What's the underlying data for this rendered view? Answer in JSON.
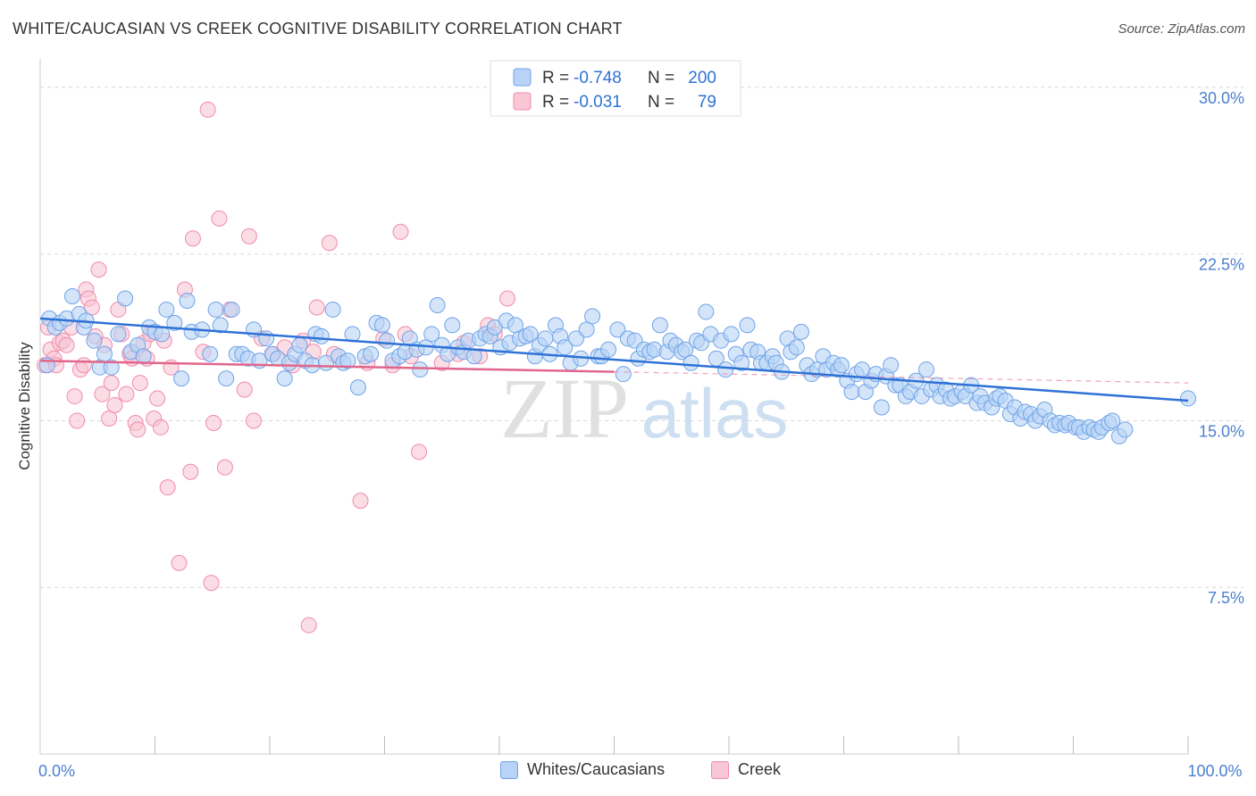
{
  "title": "WHITE/CAUCASIAN VS CREEK COGNITIVE DISABILITY CORRELATION CHART",
  "source": "Source: ZipAtlas.com",
  "watermark": {
    "zip": "ZIP",
    "atlas": "atlas"
  },
  "colors": {
    "blue": "#6fa3e8",
    "blue_fill": "#b8d3f5",
    "blue_line": "#2f72d6",
    "pink": "#f08bab",
    "pink_fill": "#f9c6d6",
    "pink_line": "#e0668c",
    "axis_text": "#4a7fd0",
    "grid": "#d8d8d8"
  },
  "legend_top": {
    "rows": [
      {
        "r_label": "R = ",
        "r_value": "-0.748",
        "n_label": "N = ",
        "n_value": "200",
        "series": "blue"
      },
      {
        "r_label": "R = ",
        "r_value": "-0.031",
        "n_label": "N = ",
        "n_value": "79",
        "series": "pink"
      }
    ]
  },
  "legend_bottom": [
    {
      "label": "Whites/Caucasians",
      "series": "blue"
    },
    {
      "label": "Creek",
      "series": "pink"
    }
  ],
  "chart_data": {
    "type": "scatter",
    "title": "WHITE/CAUCASIAN VS CREEK COGNITIVE DISABILITY CORRELATION CHART",
    "xlabel": "",
    "ylabel": "Cognitive Disability",
    "xlim": [
      0,
      100
    ],
    "ylim": [
      0,
      30.8
    ],
    "x_tick_labels": [
      {
        "value": 0,
        "label": "0.0%"
      },
      {
        "value": 100,
        "label": "100.0%"
      }
    ],
    "y_tick_labels": [
      {
        "value": 7.5,
        "label": "7.5%"
      },
      {
        "value": 15.0,
        "label": "15.0%"
      },
      {
        "value": 22.5,
        "label": "22.5%"
      },
      {
        "value": 30.0,
        "label": "30.0%"
      }
    ],
    "grid": true,
    "series": [
      {
        "name": "Whites/Caucasians",
        "color": "blue",
        "trend": {
          "x": [
            0,
            100
          ],
          "y": [
            19.6,
            15.9
          ]
        },
        "points": [
          [
            0.6,
            17.5
          ],
          [
            0.8,
            19.6
          ],
          [
            1.3,
            19.2
          ],
          [
            1.7,
            19.4
          ],
          [
            2.3,
            19.6
          ],
          [
            2.8,
            20.6
          ],
          [
            3.4,
            19.8
          ],
          [
            3.8,
            19.2
          ],
          [
            4.0,
            19.5
          ],
          [
            4.7,
            18.6
          ],
          [
            5.2,
            17.4
          ],
          [
            5.6,
            18.0
          ],
          [
            6.2,
            17.4
          ],
          [
            6.8,
            18.9
          ],
          [
            7.4,
            20.5
          ],
          [
            7.9,
            18.1
          ],
          [
            8.5,
            18.4
          ],
          [
            9.0,
            17.9
          ],
          [
            9.5,
            19.2
          ],
          [
            10.0,
            19.0
          ],
          [
            10.6,
            18.9
          ],
          [
            11.0,
            20.0
          ],
          [
            11.7,
            19.4
          ],
          [
            12.3,
            16.9
          ],
          [
            12.8,
            20.4
          ],
          [
            13.2,
            19.0
          ],
          [
            14.1,
            19.1
          ],
          [
            14.8,
            18.0
          ],
          [
            15.3,
            20.0
          ],
          [
            15.7,
            19.3
          ],
          [
            16.2,
            16.9
          ],
          [
            16.7,
            20.0
          ],
          [
            17.1,
            18.0
          ],
          [
            17.6,
            18.0
          ],
          [
            18.1,
            17.8
          ],
          [
            18.6,
            19.1
          ],
          [
            19.1,
            17.7
          ],
          [
            19.7,
            18.7
          ],
          [
            20.2,
            18.0
          ],
          [
            20.7,
            17.8
          ],
          [
            21.3,
            16.9
          ],
          [
            21.7,
            17.6
          ],
          [
            22.2,
            18.0
          ],
          [
            22.6,
            18.4
          ],
          [
            23.1,
            17.7
          ],
          [
            23.7,
            17.5
          ],
          [
            24.0,
            18.9
          ],
          [
            24.5,
            18.8
          ],
          [
            24.9,
            17.6
          ],
          [
            25.5,
            20.0
          ],
          [
            26.0,
            17.9
          ],
          [
            26.4,
            17.6
          ],
          [
            26.8,
            17.7
          ],
          [
            27.2,
            18.9
          ],
          [
            27.7,
            16.5
          ],
          [
            28.3,
            17.9
          ],
          [
            28.8,
            18.0
          ],
          [
            29.3,
            19.4
          ],
          [
            29.8,
            19.3
          ],
          [
            30.2,
            18.6
          ],
          [
            30.7,
            17.7
          ],
          [
            31.3,
            17.9
          ],
          [
            31.8,
            18.1
          ],
          [
            32.2,
            18.7
          ],
          [
            32.8,
            18.2
          ],
          [
            33.1,
            17.3
          ],
          [
            33.6,
            18.3
          ],
          [
            34.1,
            18.9
          ],
          [
            34.6,
            20.2
          ],
          [
            35.0,
            18.4
          ],
          [
            35.5,
            18.0
          ],
          [
            35.9,
            19.3
          ],
          [
            36.4,
            18.3
          ],
          [
            36.9,
            18.1
          ],
          [
            37.3,
            18.6
          ],
          [
            37.8,
            17.9
          ],
          [
            38.3,
            18.7
          ],
          [
            38.8,
            18.9
          ],
          [
            39.2,
            18.8
          ],
          [
            39.6,
            19.2
          ],
          [
            40.1,
            18.3
          ],
          [
            40.6,
            19.5
          ],
          [
            40.9,
            18.5
          ],
          [
            41.4,
            19.3
          ],
          [
            41.8,
            18.7
          ],
          [
            42.3,
            18.8
          ],
          [
            42.7,
            18.9
          ],
          [
            43.1,
            17.9
          ],
          [
            43.5,
            18.4
          ],
          [
            44.0,
            18.7
          ],
          [
            44.4,
            18.0
          ],
          [
            44.9,
            19.3
          ],
          [
            45.3,
            18.8
          ],
          [
            45.7,
            18.3
          ],
          [
            46.2,
            17.6
          ],
          [
            46.7,
            18.7
          ],
          [
            47.1,
            17.8
          ],
          [
            47.6,
            19.1
          ],
          [
            48.1,
            19.7
          ],
          [
            48.6,
            17.9
          ],
          [
            48.9,
            17.9
          ],
          [
            49.5,
            18.2
          ],
          [
            50.3,
            19.1
          ],
          [
            50.8,
            17.1
          ],
          [
            51.2,
            18.7
          ],
          [
            51.8,
            18.6
          ],
          [
            52.1,
            17.8
          ],
          [
            52.6,
            18.2
          ],
          [
            53.1,
            18.1
          ],
          [
            53.5,
            18.2
          ],
          [
            54.0,
            19.3
          ],
          [
            54.6,
            18.1
          ],
          [
            54.9,
            18.6
          ],
          [
            55.4,
            18.4
          ],
          [
            55.9,
            18.1
          ],
          [
            56.2,
            18.2
          ],
          [
            56.7,
            17.6
          ],
          [
            57.2,
            18.6
          ],
          [
            57.6,
            18.5
          ],
          [
            58.0,
            19.9
          ],
          [
            58.4,
            18.9
          ],
          [
            58.9,
            17.8
          ],
          [
            59.3,
            18.6
          ],
          [
            59.7,
            17.3
          ],
          [
            60.2,
            18.9
          ],
          [
            60.6,
            18.0
          ],
          [
            61.1,
            17.6
          ],
          [
            61.6,
            19.3
          ],
          [
            61.9,
            18.2
          ],
          [
            62.5,
            18.1
          ],
          [
            62.8,
            17.6
          ],
          [
            63.3,
            17.6
          ],
          [
            63.8,
            17.9
          ],
          [
            64.1,
            17.6
          ],
          [
            64.6,
            17.2
          ],
          [
            65.1,
            18.7
          ],
          [
            65.4,
            18.1
          ],
          [
            65.9,
            18.3
          ],
          [
            66.3,
            19.0
          ],
          [
            66.8,
            17.5
          ],
          [
            67.2,
            17.1
          ],
          [
            67.7,
            17.3
          ],
          [
            68.2,
            17.9
          ],
          [
            68.5,
            17.3
          ],
          [
            69.1,
            17.6
          ],
          [
            69.5,
            17.3
          ],
          [
            69.8,
            17.5
          ],
          [
            70.3,
            16.8
          ],
          [
            70.7,
            16.3
          ],
          [
            71.1,
            17.1
          ],
          [
            71.6,
            17.3
          ],
          [
            71.9,
            16.3
          ],
          [
            72.4,
            16.8
          ],
          [
            72.8,
            17.1
          ],
          [
            73.3,
            15.6
          ],
          [
            73.7,
            17.0
          ],
          [
            74.1,
            17.5
          ],
          [
            74.5,
            16.6
          ],
          [
            74.9,
            16.6
          ],
          [
            75.4,
            16.1
          ],
          [
            75.8,
            16.3
          ],
          [
            76.3,
            16.8
          ],
          [
            76.8,
            16.1
          ],
          [
            77.2,
            17.3
          ],
          [
            77.6,
            16.4
          ],
          [
            78.1,
            16.6
          ],
          [
            78.4,
            16.1
          ],
          [
            78.9,
            16.4
          ],
          [
            79.3,
            16.0
          ],
          [
            79.7,
            16.1
          ],
          [
            80.3,
            16.3
          ],
          [
            80.6,
            16.1
          ],
          [
            81.1,
            16.6
          ],
          [
            81.6,
            15.8
          ],
          [
            81.9,
            16.1
          ],
          [
            82.3,
            15.8
          ],
          [
            82.9,
            15.6
          ],
          [
            83.3,
            16.0
          ],
          [
            83.6,
            16.1
          ],
          [
            84.1,
            15.9
          ],
          [
            84.5,
            15.3
          ],
          [
            84.9,
            15.6
          ],
          [
            85.4,
            15.1
          ],
          [
            85.8,
            15.4
          ],
          [
            86.3,
            15.3
          ],
          [
            86.7,
            15.0
          ],
          [
            87.1,
            15.2
          ],
          [
            87.5,
            15.5
          ],
          [
            88.0,
            15.0
          ],
          [
            88.4,
            14.8
          ],
          [
            88.8,
            14.9
          ],
          [
            89.3,
            14.8
          ],
          [
            89.6,
            14.9
          ],
          [
            90.2,
            14.7
          ],
          [
            90.5,
            14.7
          ],
          [
            90.9,
            14.5
          ],
          [
            91.4,
            14.7
          ],
          [
            91.8,
            14.6
          ],
          [
            92.2,
            14.5
          ],
          [
            92.5,
            14.7
          ],
          [
            93.1,
            14.9
          ],
          [
            93.4,
            15.0
          ],
          [
            94.0,
            14.3
          ],
          [
            94.5,
            14.6
          ],
          [
            100.0,
            16.0
          ]
        ]
      },
      {
        "name": "Creek",
        "color": "pink",
        "trend": {
          "x": [
            0,
            50
          ],
          "y": [
            17.7,
            17.2
          ]
        },
        "trend_dashed": {
          "x": [
            50,
            100
          ],
          "y": [
            17.2,
            16.7
          ]
        },
        "points": [
          [
            0.4,
            17.5
          ],
          [
            0.7,
            19.2
          ],
          [
            0.9,
            18.2
          ],
          [
            1.2,
            17.8
          ],
          [
            1.4,
            17.5
          ],
          [
            1.7,
            18.5
          ],
          [
            2.0,
            18.6
          ],
          [
            2.3,
            18.4
          ],
          [
            2.7,
            19.2
          ],
          [
            3.0,
            16.1
          ],
          [
            3.2,
            15.0
          ],
          [
            3.5,
            17.3
          ],
          [
            3.8,
            17.5
          ],
          [
            4.0,
            20.9
          ],
          [
            4.2,
            20.5
          ],
          [
            4.5,
            20.1
          ],
          [
            4.8,
            18.8
          ],
          [
            5.1,
            21.8
          ],
          [
            5.4,
            16.2
          ],
          [
            5.6,
            18.4
          ],
          [
            6.0,
            15.1
          ],
          [
            6.2,
            16.7
          ],
          [
            6.5,
            15.7
          ],
          [
            6.8,
            20.0
          ],
          [
            7.1,
            18.9
          ],
          [
            7.5,
            16.2
          ],
          [
            7.8,
            18.0
          ],
          [
            8.0,
            17.8
          ],
          [
            8.3,
            14.9
          ],
          [
            8.5,
            14.6
          ],
          [
            8.7,
            16.7
          ],
          [
            9.0,
            18.5
          ],
          [
            9.3,
            17.8
          ],
          [
            9.6,
            18.9
          ],
          [
            9.9,
            15.1
          ],
          [
            10.2,
            16.0
          ],
          [
            10.5,
            14.7
          ],
          [
            10.8,
            18.6
          ],
          [
            11.1,
            12.0
          ],
          [
            11.4,
            17.4
          ],
          [
            12.1,
            8.6
          ],
          [
            12.6,
            20.9
          ],
          [
            13.1,
            12.7
          ],
          [
            13.3,
            23.2
          ],
          [
            14.2,
            18.1
          ],
          [
            14.6,
            29.0
          ],
          [
            14.9,
            7.7
          ],
          [
            15.1,
            14.9
          ],
          [
            15.6,
            24.1
          ],
          [
            16.1,
            12.9
          ],
          [
            16.5,
            20.0
          ],
          [
            17.8,
            16.4
          ],
          [
            18.2,
            23.3
          ],
          [
            18.6,
            15.0
          ],
          [
            19.3,
            18.7
          ],
          [
            20.3,
            18.0
          ],
          [
            21.3,
            18.3
          ],
          [
            22.0,
            17.5
          ],
          [
            22.9,
            18.6
          ],
          [
            23.4,
            5.8
          ],
          [
            23.8,
            18.1
          ],
          [
            24.1,
            20.1
          ],
          [
            25.2,
            23.0
          ],
          [
            25.6,
            18.0
          ],
          [
            27.9,
            11.4
          ],
          [
            28.5,
            17.6
          ],
          [
            29.9,
            18.7
          ],
          [
            30.7,
            17.5
          ],
          [
            31.4,
            23.5
          ],
          [
            31.8,
            18.9
          ],
          [
            32.3,
            17.9
          ],
          [
            33.0,
            13.6
          ],
          [
            35.0,
            17.6
          ],
          [
            36.4,
            18.0
          ],
          [
            36.9,
            18.5
          ],
          [
            38.3,
            17.9
          ],
          [
            39.0,
            19.3
          ],
          [
            39.6,
            18.9
          ],
          [
            40.7,
            20.5
          ]
        ]
      }
    ]
  }
}
